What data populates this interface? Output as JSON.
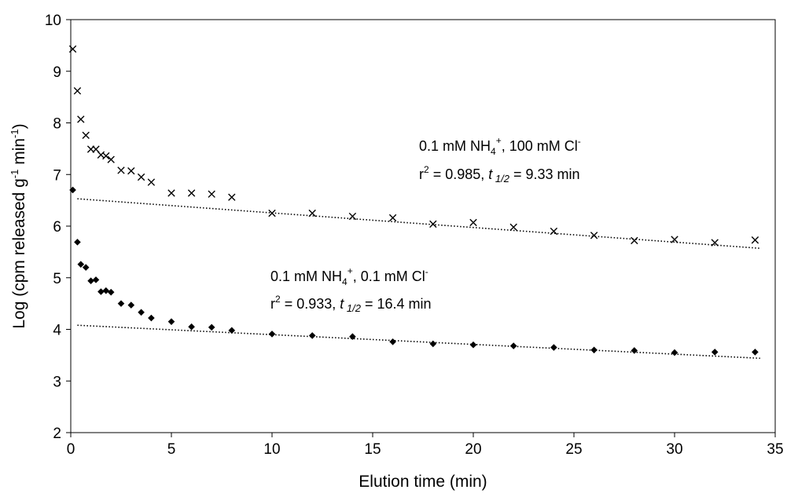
{
  "chart_data": {
    "type": "scatter",
    "title": "",
    "xlabel": "Elution time (min)",
    "ylabel": "Log (cpm released g",
    "ylabel_sup1": "-1",
    "ylabel_mid": " min",
    "ylabel_sup2": "-1",
    "ylabel_end": ")",
    "xlim": [
      0,
      35
    ],
    "ylim": [
      2,
      10
    ],
    "x_ticks": [
      "0",
      "5",
      "10",
      "15",
      "20",
      "25",
      "30",
      "35"
    ],
    "y_ticks": [
      "2",
      "3",
      "4",
      "5",
      "6",
      "7",
      "8",
      "9",
      "10"
    ],
    "grid": false,
    "legend": "none",
    "series": [
      {
        "marker": "x",
        "color": "#000000",
        "x": [
          0.1,
          0.33,
          0.5,
          0.75,
          1.0,
          1.25,
          1.5,
          1.75,
          2.0,
          2.5,
          3.0,
          3.5,
          4.0,
          5,
          6,
          7,
          8,
          10,
          12,
          14,
          16,
          18,
          20,
          22,
          24,
          26,
          28,
          30,
          32,
          34
        ],
        "y": [
          9.43,
          8.62,
          8.07,
          7.76,
          7.49,
          7.49,
          7.38,
          7.36,
          7.29,
          7.08,
          7.07,
          6.95,
          6.85,
          6.64,
          6.64,
          6.62,
          6.56,
          6.25,
          6.25,
          6.19,
          6.16,
          6.04,
          6.07,
          5.98,
          5.9,
          5.82,
          5.72,
          5.74,
          5.68,
          5.73
        ],
        "trend": {
          "x": [
            0.33,
            34.25
          ],
          "y": [
            6.53,
            5.57
          ]
        }
      },
      {
        "marker": "diamond",
        "color": "#000000",
        "x": [
          0.1,
          0.33,
          0.5,
          0.75,
          1.0,
          1.25,
          1.5,
          1.75,
          2.0,
          2.5,
          3.0,
          3.5,
          4.0,
          5,
          6,
          7,
          8,
          10,
          12,
          14,
          16,
          18,
          20,
          22,
          24,
          26,
          28,
          30,
          32,
          34
        ],
        "y": [
          6.7,
          5.69,
          5.26,
          5.2,
          4.94,
          4.96,
          4.73,
          4.75,
          4.72,
          4.5,
          4.47,
          4.33,
          4.22,
          4.15,
          4.05,
          4.04,
          3.98,
          3.91,
          3.88,
          3.86,
          3.76,
          3.72,
          3.7,
          3.68,
          3.65,
          3.6,
          3.59,
          3.55,
          3.56,
          3.56
        ],
        "trend": {
          "x": [
            0.33,
            34.25
          ],
          "y": [
            4.08,
            3.44
          ]
        }
      }
    ],
    "annotations": [
      {
        "line1_a": "0.1 mM NH",
        "line1_sub": "4",
        "line1_sup": "+",
        "line1_b": ", 100 mM Cl",
        "line1_sup2": "-",
        "line2_a": "r",
        "line2_sup": "2",
        "line2_b": " = 0.985, ",
        "line2_t": "t",
        "line2_tsub": " 1/2",
        "line2_c": "  =  9.33 min"
      },
      {
        "line1_a": "0.1 mM NH",
        "line1_sub": "4",
        "line1_sup": "+",
        "line1_b": ", 0.1 mM Cl",
        "line1_sup2": "-",
        "line2_a": "r",
        "line2_sup": "2",
        "line2_b": " = 0.933, ",
        "line2_t": "t",
        "line2_tsub": " 1/2",
        "line2_c": "  = 16.4 min"
      }
    ]
  }
}
